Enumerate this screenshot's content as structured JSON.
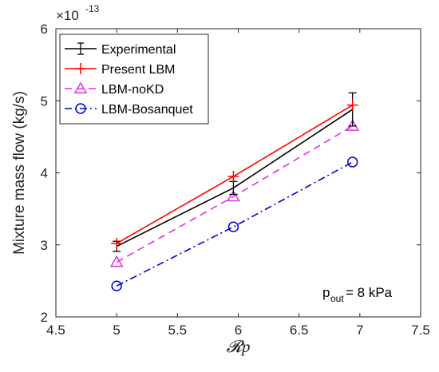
{
  "chart_data": {
    "type": "line",
    "xlabel": "𝓡p",
    "ylabel": "Mixture mass flow (kg/s)",
    "y_exponent_label": "×10",
    "y_exponent_power": "-13",
    "xlim": [
      4.5,
      7.5
    ],
    "ylim": [
      2,
      6
    ],
    "xticks": [
      4.5,
      5,
      5.5,
      6,
      6.5,
      7,
      7.5
    ],
    "xtick_labels": [
      "4.5",
      "5",
      "5.5",
      "6",
      "6.5",
      "7",
      "7.5"
    ],
    "yticks": [
      2,
      3,
      4,
      5,
      6
    ],
    "ytick_labels": [
      "2",
      "3",
      "4",
      "5",
      "6"
    ],
    "grid": false,
    "legend_position": "top-left",
    "annotation": {
      "base": "p",
      "sub": "out",
      "rest": " = 8 kPa"
    },
    "series": [
      {
        "name": "Experimental",
        "color": "#000000",
        "dash": "solid",
        "marker": "errorbar",
        "x": [
          5.0,
          5.96,
          6.94
        ],
        "y": [
          2.98,
          3.79,
          4.88
        ],
        "err": [
          0.07,
          0.09,
          0.23
        ]
      },
      {
        "name": "Present LBM",
        "color": "#ff0000",
        "dash": "solid",
        "marker": "plus",
        "x": [
          5.0,
          5.96,
          6.94
        ],
        "y": [
          3.02,
          3.95,
          4.94
        ]
      },
      {
        "name": "LBM-noKD",
        "color": "#dd33dd",
        "dash": "dashed",
        "marker": "triangle",
        "x": [
          5.0,
          5.96,
          6.94
        ],
        "y": [
          2.76,
          3.67,
          4.65
        ]
      },
      {
        "name": "LBM-Bosanquet",
        "color": "#0000cc",
        "dash": "dashdot",
        "marker": "circle",
        "x": [
          5.0,
          5.96,
          6.94
        ],
        "y": [
          2.43,
          3.25,
          4.15
        ]
      }
    ]
  }
}
